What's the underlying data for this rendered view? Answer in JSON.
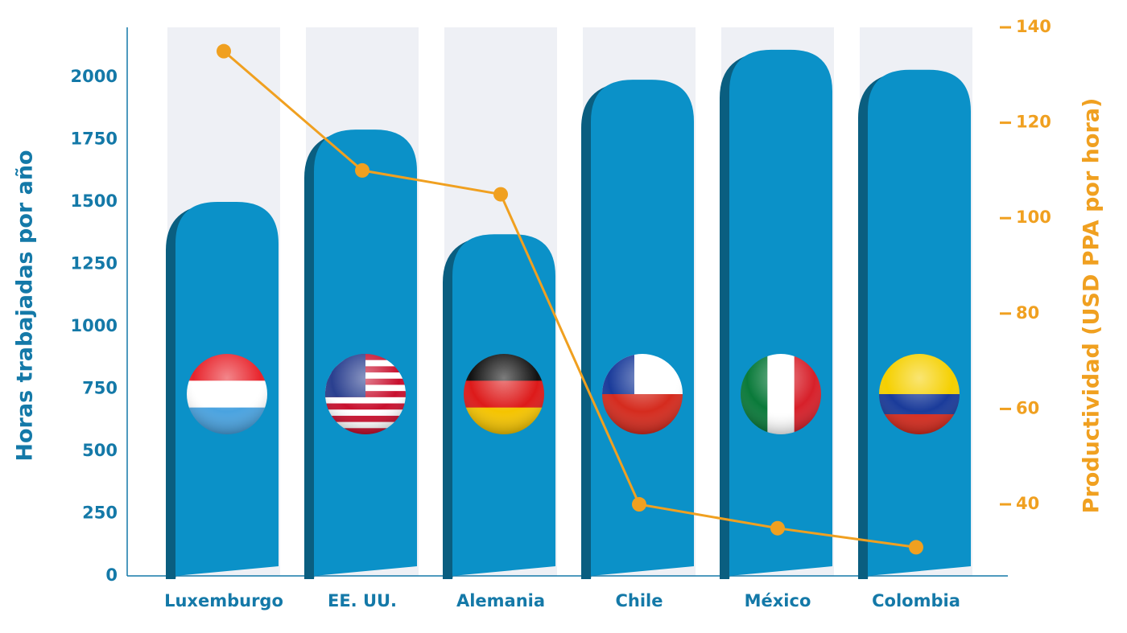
{
  "chart_data": {
    "type": "combo",
    "ylabel": "Horas trabajadas por año",
    "y2label": "Productividad (USD PPA por hora)",
    "categories": [
      "Luxemburgo",
      "EE. UU.",
      "Alemania",
      "Chile",
      "México",
      "Colombia"
    ],
    "series": [
      {
        "type": "bar",
        "color": "#0b91c8",
        "values": [
          1500,
          1790,
          1370,
          1990,
          2110,
          2030
        ]
      },
      {
        "type": "line",
        "axis": "y2",
        "color": "#f0a020",
        "values": [
          135,
          110,
          105,
          40,
          35,
          31
        ]
      }
    ],
    "ylim": [
      0,
      2200
    ],
    "yticks": [
      0,
      250,
      500,
      750,
      1000,
      1250,
      1500,
      1750,
      2000
    ],
    "y2lim": [
      25,
      140
    ],
    "y2ticks": [
      40,
      60,
      80,
      100,
      120,
      140
    ],
    "grid": true
  }
}
